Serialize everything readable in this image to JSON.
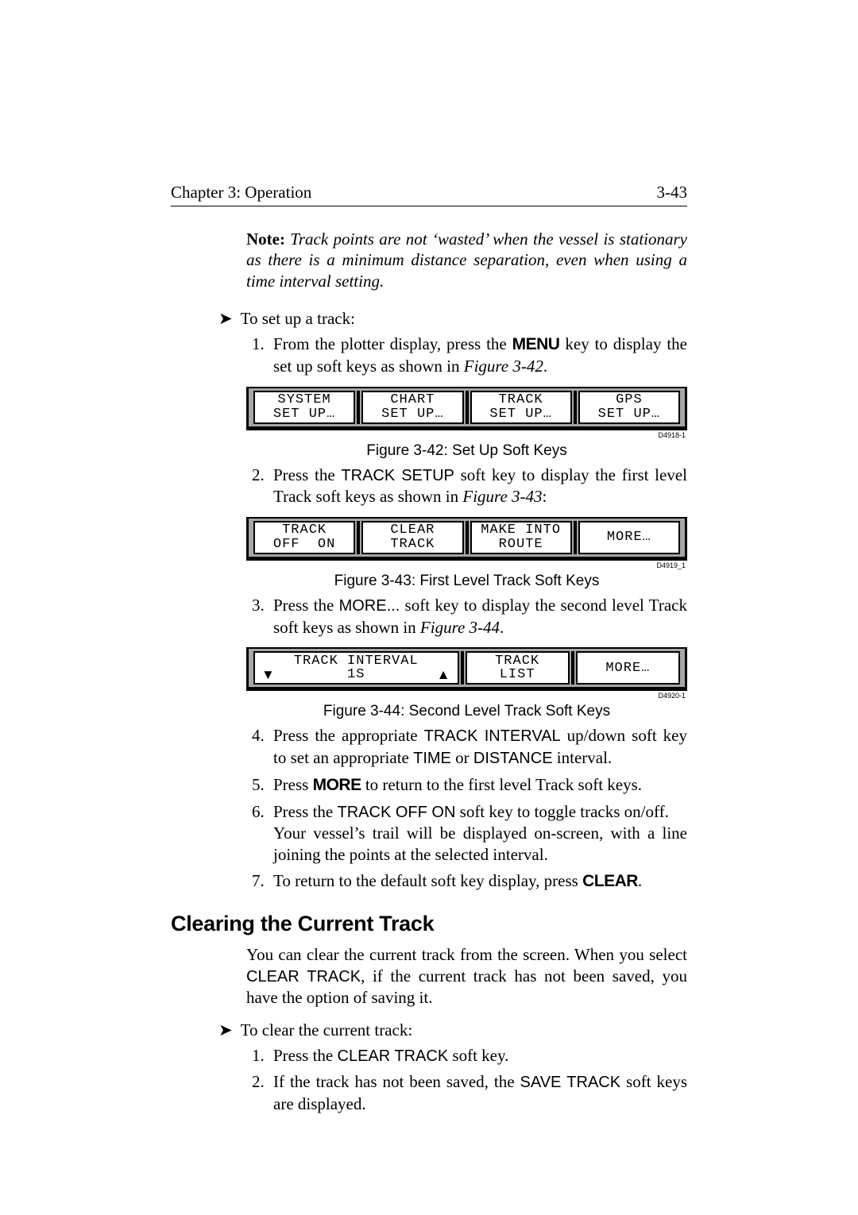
{
  "header": {
    "chapter": "Chapter 3: Operation",
    "page_num": "3-43"
  },
  "note": {
    "label": "Note:",
    "body": "Track points are not ‘wasted’ when the vessel is stationary as there is a minimum distance separation, even when using a time interval setting."
  },
  "proc1_intro": "To set up a track:",
  "steps": {
    "s1_pre": "From the plotter display, press the ",
    "s1_key": "MENU",
    "s1_post": " key to display the set up soft keys as shown in ",
    "s1_fig": "Figure 3-42",
    "s2_pre": "Press the ",
    "s2_key": "TRACK SETUP",
    "s2_post": " soft key to display the first level Track soft keys as shown in ",
    "s2_fig": "Figure 3-43",
    "s3_pre": "Press the ",
    "s3_key": "MORE...",
    "s3_post": " soft key to display the second level Track soft keys as shown in ",
    "s3_fig": "Figure 3-44",
    "s4_pre": "Press the appropriate ",
    "s4_key1": "TRACK INTERVAL",
    "s4_mid": " up/down soft key to set an appropriate ",
    "s4_key2": "TIME",
    "s4_or": " or ",
    "s4_key3": "DISTANCE",
    "s4_post": " interval.",
    "s5_pre": "Press ",
    "s5_key": "MORE",
    "s5_post": " to return to the first level Track soft keys.",
    "s6_pre": "Press the ",
    "s6_key": "TRACK OFF ON",
    "s6_mid": " soft key to toggle tracks on/off.",
    "s6_next": "Your vessel’s trail will be displayed on-screen, with a line joining the points at the selected interval.",
    "s7_pre": "To return to the default soft key display, press ",
    "s7_key": "CLEAR",
    "s7_post": "."
  },
  "fig42": {
    "caption": "Figure 3-42:  Set Up Soft Keys",
    "id": "D4918-1",
    "k1a": "SYSTEM",
    "k1b": "SET UP…",
    "k2a": "CHART",
    "k2b": "SET UP…",
    "k3a": "TRACK",
    "k3b": "SET UP…",
    "k4a": "GPS",
    "k4b": "SET UP…"
  },
  "fig43": {
    "caption": "Figure 3-43:  First Level Track Soft Keys",
    "id": "D4919_1",
    "k1a": "TRACK",
    "k1b": "OFF  ON",
    "k2a": "CLEAR",
    "k2b": "TRACK",
    "k3a": "MAKE INTO",
    "k3b": "ROUTE",
    "k4a": "",
    "k4b": "MORE…"
  },
  "fig44": {
    "caption": "Figure 3-44:  Second Level Track Soft Keys",
    "id": "D4920-1",
    "k1a": "TRACK INTERVAL",
    "k1b_left": "▼",
    "k1b_mid": "1S",
    "k1b_right": "▲",
    "k2a": "TRACK",
    "k2b": "LIST",
    "k3a": "",
    "k3b": "MORE…"
  },
  "h2": "Clearing the Current Track",
  "para2_pre": "You can clear the current track from the screen. When you select ",
  "para2_k1": "CLEAR TRACK",
  "para2_post": ", if the current track has not been saved, you have the option of saving it.",
  "proc2_intro": "To clear the current track:",
  "steps2": {
    "s1_pre": "Press the ",
    "s1_key": "CLEAR TRACK",
    "s1_post": " soft key.",
    "s2_pre": "If the track has not been saved, the ",
    "s2_key": "SAVE TRACK",
    "s2_post": " soft keys are displayed."
  },
  "colors": {
    "text": "#000000",
    "background": "#ffffff",
    "softkey_border": "#000000",
    "softkey_panel_bg": "#a6a6a6"
  }
}
